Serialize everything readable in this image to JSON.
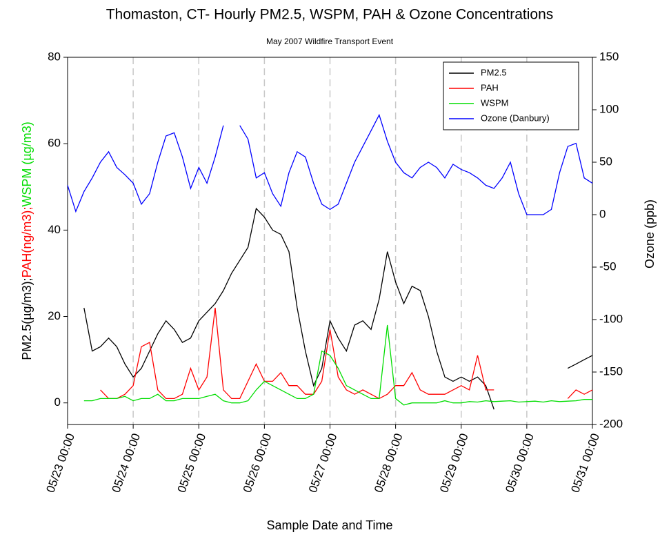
{
  "chart_data": {
    "type": "line",
    "title": "Thomaston, CT- Hourly PM2.5, WSPM, PAH & Ozone Concentrations",
    "subtitle": "May 2007 Wildfire Transport Event",
    "xlabel": "Sample Date and Time",
    "ylabel": [
      {
        "text": "PM2.5(µg/m3);",
        "color": "#000000"
      },
      {
        "text": "PAH(ng/m3);",
        "color": "#ff0000"
      },
      {
        "text": "WSPM (µg/m3)",
        "color": "#00dd00"
      }
    ],
    "y2label": "Ozone (ppb)",
    "y2label_color": "#0000ff",
    "legend": "upper right",
    "grid": "x-dashed",
    "xlim": [
      0,
      8
    ],
    "xticks": [
      {
        "value": 0,
        "label": "05/23 00:00"
      },
      {
        "value": 1,
        "label": "05/24 00:00"
      },
      {
        "value": 2,
        "label": "05/25 00:00"
      },
      {
        "value": 3,
        "label": "05/26 00:00"
      },
      {
        "value": 4,
        "label": "05/27 00:00"
      },
      {
        "value": 5,
        "label": "05/28 00:00"
      },
      {
        "value": 6,
        "label": "05/29 00:00"
      },
      {
        "value": 7,
        "label": "05/30 00:00"
      },
      {
        "value": 8,
        "label": "05/31 00:00"
      }
    ],
    "ylim": [
      -5,
      80
    ],
    "yticks": [
      0,
      20,
      40,
      60,
      80
    ],
    "y2lim": [
      -200,
      150
    ],
    "y2ticks": [
      -200,
      -150,
      -100,
      -50,
      0,
      50,
      100,
      150
    ],
    "x": [
      0,
      0.125,
      0.25,
      0.375,
      0.5,
      0.625,
      0.75,
      0.875,
      1,
      1.125,
      1.25,
      1.375,
      1.5,
      1.625,
      1.75,
      1.875,
      2,
      2.125,
      2.25,
      2.375,
      2.5,
      2.625,
      2.75,
      2.875,
      3,
      3.125,
      3.25,
      3.375,
      3.5,
      3.625,
      3.75,
      3.875,
      4,
      4.125,
      4.25,
      4.375,
      4.5,
      4.625,
      4.75,
      4.875,
      5,
      5.125,
      5.25,
      5.375,
      5.5,
      5.625,
      5.75,
      5.875,
      6,
      6.125,
      6.25,
      6.375,
      6.5,
      6.625,
      6.75,
      6.875,
      7,
      7.125,
      7.25,
      7.375,
      7.5,
      7.625,
      7.75,
      7.875,
      8
    ],
    "series": [
      {
        "name": "PM2.5",
        "color": "#000000",
        "values": [
          null,
          null,
          22,
          12,
          13,
          15,
          13,
          9,
          6,
          8,
          12,
          16,
          19,
          17,
          14,
          15,
          19,
          21,
          23,
          26,
          30,
          33,
          36,
          45,
          43,
          40,
          39,
          35,
          22,
          12,
          4,
          8,
          19,
          15,
          12,
          18,
          19,
          17,
          24,
          35,
          28,
          23,
          27,
          26,
          20,
          12,
          6,
          5,
          6,
          5,
          6,
          4,
          -1.5,
          null,
          null,
          null,
          null,
          null,
          null,
          7,
          null,
          8,
          9,
          10,
          11
        ]
      },
      {
        "name": "PAH",
        "color": "#ff0000",
        "values": [
          null,
          null,
          null,
          null,
          3,
          1,
          1,
          2,
          4,
          13,
          14,
          3,
          1,
          1,
          2,
          8,
          3,
          6,
          22,
          3,
          1,
          1,
          5,
          9,
          5,
          5,
          7,
          4,
          4,
          2,
          2,
          5,
          17,
          6,
          3,
          2,
          3,
          2,
          1,
          2,
          4,
          4,
          7,
          3,
          2,
          2,
          2,
          3,
          4,
          3,
          11,
          3,
          3,
          null,
          null,
          null,
          null,
          null,
          null,
          2,
          null,
          1,
          3,
          2,
          3
        ]
      },
      {
        "name": "WSPM",
        "color": "#00dd00",
        "values": [
          null,
          null,
          0.5,
          0.5,
          1,
          1,
          1,
          1.5,
          0.5,
          1,
          1,
          2,
          0.5,
          0.5,
          1,
          1,
          1,
          1.5,
          2,
          0.5,
          0,
          0,
          0.5,
          3,
          5,
          4,
          3,
          2,
          1,
          1,
          2,
          12,
          11,
          8,
          4,
          3,
          2,
          1,
          1,
          18,
          1,
          -0.5,
          0,
          0,
          0,
          0,
          0.5,
          0,
          0,
          0.3,
          0.2,
          0.5,
          0.3,
          0.4,
          0.5,
          0.2,
          0.3,
          0.4,
          0.2,
          0.5,
          0.3,
          0.4,
          0.5,
          0.8,
          0.8
        ]
      },
      {
        "name": "Ozone (Danbury)",
        "color": "#0000ff",
        "axis": "y2",
        "values": [
          28,
          3,
          22,
          35,
          50,
          60,
          45,
          38,
          30,
          10,
          20,
          50,
          75,
          78,
          55,
          25,
          45,
          30,
          55,
          85,
          null,
          85,
          72,
          35,
          40,
          20,
          8,
          40,
          60,
          55,
          30,
          10,
          5,
          10,
          30,
          50,
          65,
          80,
          95,
          70,
          50,
          40,
          35,
          45,
          50,
          45,
          35,
          48,
          43,
          40,
          35,
          28,
          25,
          35,
          50,
          20,
          0,
          0,
          0,
          5,
          40,
          65,
          68,
          35,
          30
        ]
      }
    ]
  }
}
